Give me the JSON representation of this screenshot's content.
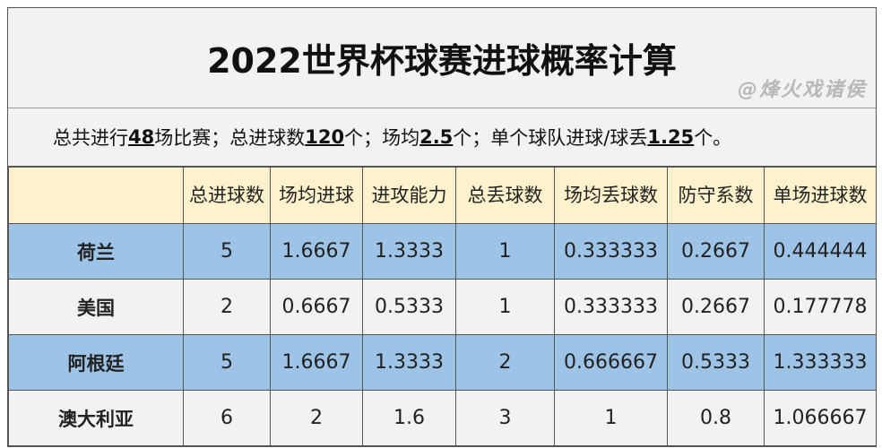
{
  "title": "2022世界杯球赛进球概率计算",
  "summary": {
    "p1": "总共进行",
    "v1": "48",
    "p2": "场比赛；总进球数",
    "v2": "120",
    "p3": "个；场均",
    "v3": "2.5",
    "p4": "个；单个球队进球/球丢",
    "v4": "1.25",
    "p5": "个。"
  },
  "headers": [
    "",
    "总进球数",
    "场均进球",
    "进攻能力",
    "总丢球数",
    "场均丢球数",
    "防守系数",
    "单场进球数"
  ],
  "rows": [
    [
      "荷兰",
      "5",
      "1.6667",
      "1.3333",
      "1",
      "0.333333",
      "0.2667",
      "0.444444"
    ],
    [
      "美国",
      "2",
      "0.6667",
      "0.5333",
      "1",
      "0.333333",
      "0.2667",
      "0.177778"
    ],
    [
      "阿根廷",
      "5",
      "1.6667",
      "1.3333",
      "2",
      "0.666667",
      "0.5333",
      "1.333333"
    ],
    [
      "澳大利亚",
      "6",
      "2",
      "1.6",
      "3",
      "1",
      "0.8",
      "1.066667"
    ]
  ],
  "colors": {
    "header": "#fff2cc",
    "blue_row": "#9dc3e6",
    "gray_row": "#f2f2f2"
  },
  "watermark": "@烽火戏诸侯"
}
